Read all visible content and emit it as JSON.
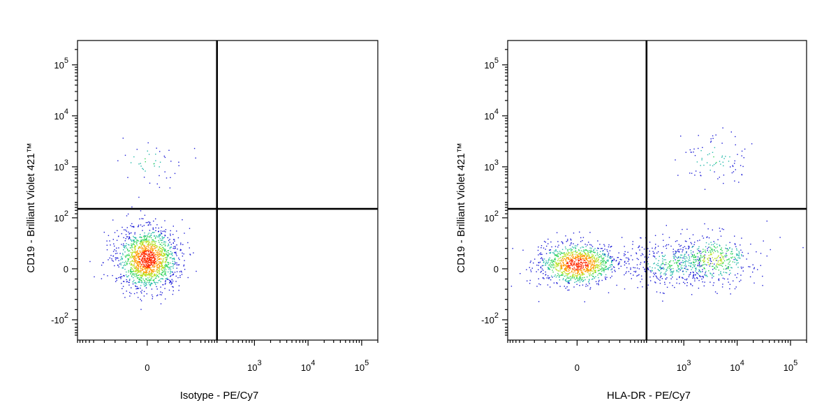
{
  "chart_data": [
    {
      "type": "scatter",
      "subtype": "flow-cytometry-density-dot-plot",
      "xlabel": "Isotype - PE/Cy7",
      "ylabel": "CD19 - Brilliant Violet 421™",
      "xscale": "biexponential",
      "yscale": "biexponential",
      "x_ticks": [
        "0",
        "10^3",
        "10^4",
        "10^5"
      ],
      "y_ticks": [
        "10^5",
        "10^4",
        "10^3",
        "10^2",
        "0",
        "-10^2"
      ],
      "quadrant_gate": {
        "x": 200,
        "y": 150
      },
      "populations": [
        {
          "center_x": 0,
          "center_y": 20,
          "spread_x": "wide",
          "spread_y": "wide",
          "count": 1500,
          "density": "high"
        },
        {
          "center_x": 0,
          "center_y": 1300,
          "count": 45,
          "density": "low"
        }
      ]
    },
    {
      "type": "scatter",
      "subtype": "flow-cytometry-density-dot-plot",
      "xlabel": "HLA-DR - PE/Cy7",
      "ylabel": "CD19 - Brilliant Violet 421™",
      "xscale": "biexponential",
      "yscale": "biexponential",
      "x_ticks": [
        "0",
        "10^3",
        "10^4",
        "10^5"
      ],
      "y_ticks": [
        "10^5",
        "10^4",
        "10^3",
        "10^2",
        "0",
        "-10^2"
      ],
      "quadrant_gate": {
        "x": 200,
        "y": 150
      },
      "populations": [
        {
          "center_x": 0,
          "center_y": 10,
          "count": 1100,
          "density": "high"
        },
        {
          "center_x": 600,
          "center_y": 10,
          "count": 400,
          "density": "low"
        },
        {
          "center_x": 3500,
          "center_y": 20,
          "count": 420,
          "density": "medium"
        },
        {
          "center_x": 3500,
          "center_y": 1500,
          "count": 85,
          "density": "low"
        }
      ]
    }
  ],
  "colors": {
    "low": "#1a1ad6",
    "mid": "#22b8a8",
    "high_mid": "#b8e020",
    "high": "#ff2a00",
    "gate": "#000000"
  }
}
